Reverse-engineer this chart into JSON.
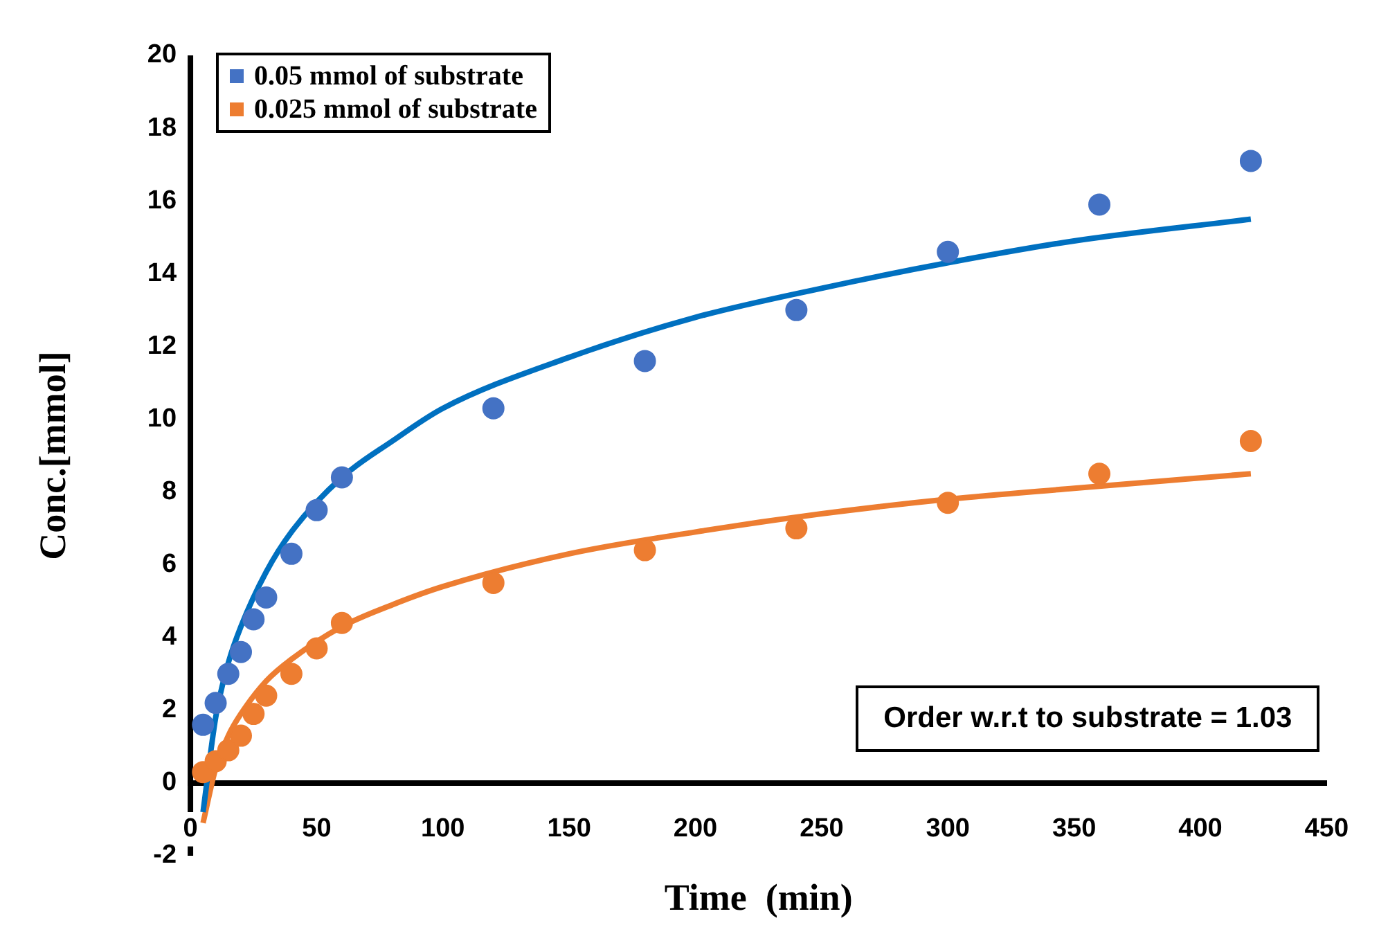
{
  "chart_data": {
    "type": "scatter",
    "xlabel": "Time  (min)",
    "ylabel": "Conc.[mmol]",
    "xlim": [
      0,
      450
    ],
    "xticks": [
      0,
      50,
      100,
      150,
      200,
      250,
      300,
      350,
      400,
      450
    ],
    "ylim": [
      -2,
      20
    ],
    "yticks": [
      -2,
      0,
      2,
      4,
      6,
      8,
      10,
      12,
      14,
      16,
      18,
      20
    ],
    "grid": false,
    "legend": "top left",
    "marker": "circle",
    "annotations": [
      "Order w.r.t to substrate = 1.03"
    ],
    "x": [
      5,
      10,
      15,
      20,
      25,
      30,
      40,
      50,
      60,
      120,
      180,
      240,
      300,
      360,
      420
    ],
    "series": [
      {
        "name": "0.05 mmol of substrate",
        "color": "#4472c4",
        "values": [
          1.6,
          2.2,
          3.0,
          3.6,
          4.5,
          5.1,
          6.3,
          7.5,
          8.4,
          10.3,
          11.6,
          13.0,
          14.6,
          15.9,
          17.1
        ]
      },
      {
        "name": "0.025 mmol of substrate",
        "color": "#ed7d31",
        "values": [
          0.3,
          0.6,
          0.9,
          1.3,
          1.9,
          2.4,
          3.0,
          3.7,
          4.4,
          5.5,
          6.4,
          7.0,
          7.7,
          8.5,
          9.4
        ]
      },
      {
        "type": "line",
        "color": "#0070c0",
        "line_style": "solid",
        "marker": "none",
        "x": [
          5,
          10,
          15,
          20,
          30,
          40,
          60,
          80,
          100,
          150,
          200,
          250,
          300,
          350,
          420
        ],
        "values": [
          -0.8,
          1.8,
          3.3,
          4.3,
          5.8,
          6.9,
          8.4,
          9.4,
          10.3,
          11.7,
          12.8,
          13.6,
          14.3,
          14.9,
          15.5
        ]
      },
      {
        "type": "line",
        "color": "#ed7d31",
        "line_style": "solid",
        "marker": "none",
        "x": [
          5,
          10,
          15,
          20,
          30,
          40,
          60,
          80,
          100,
          150,
          200,
          250,
          300,
          350,
          420
        ],
        "values": [
          -1.1,
          0.4,
          1.3,
          1.9,
          2.8,
          3.4,
          4.3,
          4.9,
          5.4,
          6.3,
          6.9,
          7.4,
          7.8,
          8.1,
          8.5
        ]
      }
    ]
  }
}
